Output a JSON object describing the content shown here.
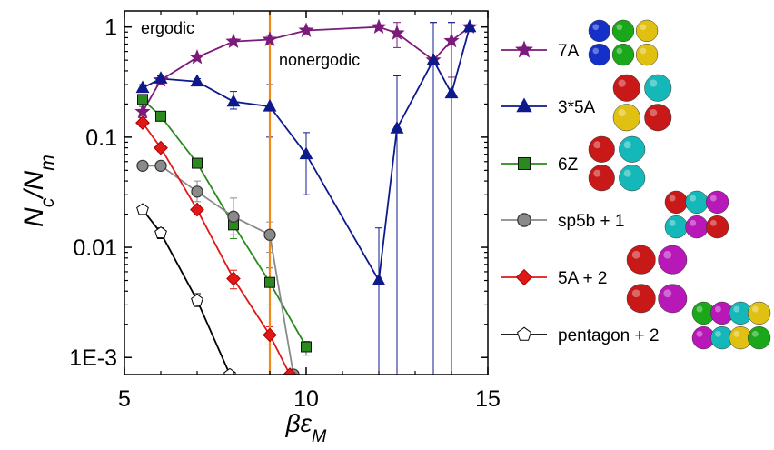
{
  "chart_data": {
    "type": "line",
    "title": "",
    "xlabel": "βε_M",
    "ylabel": "N_c/N_m",
    "yscale": "log",
    "xlim": [
      5,
      15
    ],
    "ylim": [
      0.0007,
      1.4
    ],
    "x_ticks": [
      5,
      10,
      15
    ],
    "x_tick_labels": [
      "5",
      "10",
      "15"
    ],
    "y_ticks": [
      0.001,
      0.01,
      0.1,
      1
    ],
    "y_tick_labels": [
      "1E-3",
      "0.01",
      "0.1",
      "1"
    ],
    "grid": false,
    "legend_position": "right, outside plot",
    "vertical_line": {
      "x": 9,
      "color": "#f08a1c"
    },
    "annotations": [
      "ergodic",
      "nonergodic"
    ],
    "series": [
      {
        "name": "7A",
        "color": "#7b1a7b",
        "marker": "star",
        "fill": "#7b1a7b",
        "x": [
          5.5,
          6,
          7,
          8,
          9,
          10,
          12,
          12.5,
          13.5,
          14,
          14.5
        ],
        "y": [
          0.17,
          0.33,
          0.53,
          0.74,
          0.77,
          0.93,
          1.0,
          0.88,
          0.5,
          0.75,
          1.0
        ],
        "err_lo": [
          0.15,
          0.3,
          0.5,
          0.7,
          0.7,
          0.88,
          0.95,
          0.65,
          0.0003,
          0.35,
          0.95
        ],
        "err_hi": [
          0.19,
          0.36,
          0.56,
          0.78,
          0.84,
          0.98,
          1.05,
          1.1,
          1.1,
          1.1,
          1.05
        ]
      },
      {
        "name": "3*5A",
        "color": "#0e1a8c",
        "marker": "triangle",
        "fill": "#0e1a8c",
        "x": [
          5.5,
          6,
          7,
          8,
          9,
          10,
          12,
          12.5,
          13.5,
          14,
          14.5
        ],
        "y": [
          0.28,
          0.34,
          0.32,
          0.21,
          0.19,
          0.07,
          0.005,
          0.12,
          0.5,
          0.25,
          1.0
        ],
        "err_lo": [
          0.26,
          0.32,
          0.3,
          0.18,
          0.1,
          0.03,
          0.0003,
          0.0003,
          0.0003,
          0.0003,
          0.95
        ],
        "err_hi": [
          0.3,
          0.36,
          0.34,
          0.26,
          0.3,
          0.11,
          0.015,
          0.36,
          1.1,
          1.1,
          1.05
        ]
      },
      {
        "name": "6Z",
        "color": "#2a8a1e",
        "marker": "square",
        "fill": "#2a8a1e",
        "x": [
          5.5,
          6,
          7,
          8,
          9,
          10
        ],
        "y": [
          0.22,
          0.155,
          0.058,
          0.016,
          0.0048,
          0.00125
        ],
        "err_lo": [
          0.2,
          0.145,
          0.054,
          0.012,
          0.003,
          0.00105
        ],
        "err_hi": [
          0.24,
          0.165,
          0.062,
          0.02,
          0.0065,
          0.0014
        ]
      },
      {
        "name": "sp5b + 1",
        "color": "#8a8a8a",
        "marker": "circle",
        "fill": "#8a8a8a",
        "x": [
          5.5,
          6,
          7,
          8,
          9,
          9.65
        ],
        "y": [
          0.055,
          0.055,
          0.032,
          0.019,
          0.013,
          0.0007
        ],
        "err_lo": [
          0.052,
          0.052,
          0.026,
          0.013,
          0.009,
          null
        ],
        "err_hi": [
          0.058,
          0.058,
          0.04,
          0.028,
          0.017,
          null
        ]
      },
      {
        "name": "5A + 2",
        "color": "#e01818",
        "marker": "diamond",
        "fill": "#e01818",
        "x": [
          5.5,
          6,
          7,
          8,
          9,
          9.55
        ],
        "y": [
          0.135,
          0.08,
          0.022,
          0.0052,
          0.0016,
          0.0007
        ],
        "err_lo": [
          0.125,
          0.074,
          0.02,
          0.0042,
          0.0013,
          null
        ],
        "err_hi": [
          0.145,
          0.086,
          0.024,
          0.0062,
          0.0019,
          null
        ]
      },
      {
        "name": "pentagon + 2",
        "color": "#000000",
        "marker": "pentagon",
        "fill": "#ffffff",
        "x": [
          5.5,
          6,
          7,
          7.9
        ],
        "y": [
          0.022,
          0.0135,
          0.0033,
          0.0007
        ],
        "err_lo": [
          0.021,
          0.012,
          0.0029,
          null
        ],
        "err_hi": [
          0.023,
          0.015,
          0.0038,
          null
        ]
      }
    ]
  },
  "legend_images": [
    {
      "alt": "7A cluster image",
      "colors": [
        "#1530c8",
        "#1aa81a",
        "#e0c010",
        "#c81818"
      ]
    },
    {
      "alt": "3*5A cluster image",
      "colors": [
        "#c81818",
        "#15b8b8",
        "#1530c8",
        "#e0c010"
      ]
    },
    {
      "alt": "6Z cluster image",
      "colors": [
        "#c81818",
        "#15b8b8",
        "#1530c8"
      ]
    },
    {
      "alt": "sp5b + 1 cluster image",
      "colors": [
        "#c81818",
        "#15b8b8",
        "#b818b8"
      ]
    },
    {
      "alt": "5A + 2 cluster image",
      "colors": [
        "#c81818",
        "#b818b8",
        "#1aa81a"
      ]
    },
    {
      "alt": "pentagon + 2 cluster image",
      "colors": [
        "#1aa81a",
        "#b818b8",
        "#15b8b8",
        "#e0c010"
      ]
    }
  ]
}
